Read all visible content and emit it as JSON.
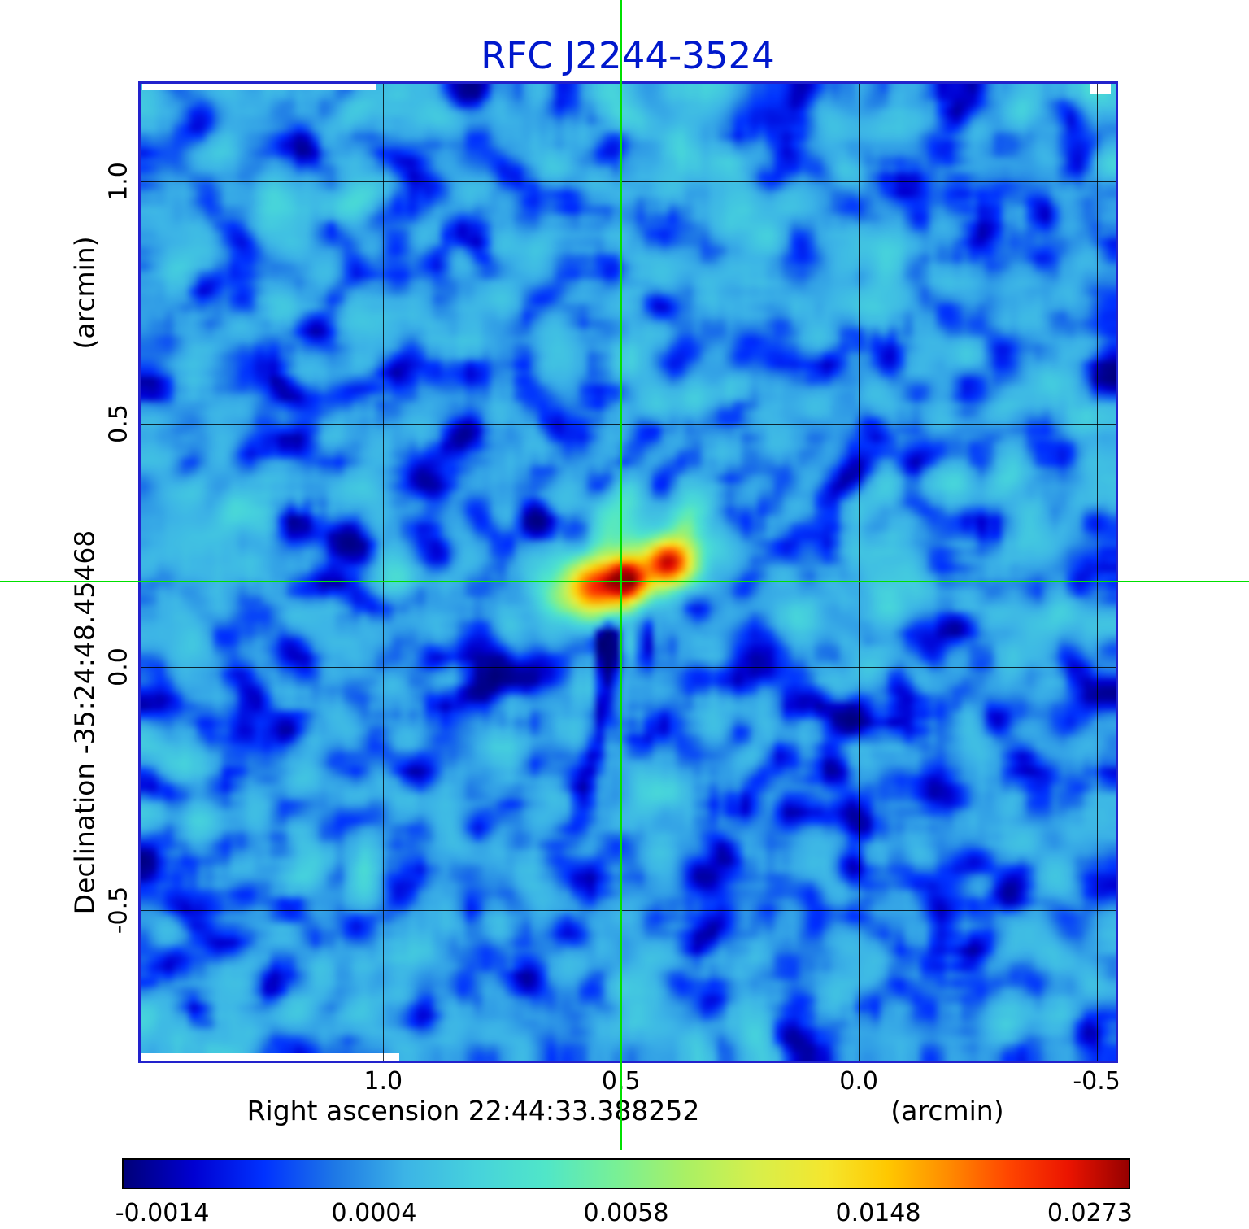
{
  "chart_data": {
    "type": "heatmap",
    "title": "RFC J2244-3524",
    "title_color": "#0018cc",
    "xlabel": "Right ascension  22:44:33.388252",
    "xunit": "(arcmin)",
    "ylabel": "Declination  -35:24:48.45468",
    "yunit": "(arcmin)",
    "x_range_arcmin": [
      1.51,
      -0.54
    ],
    "y_range_arcmin": [
      -0.81,
      1.2
    ],
    "x_ticks": [
      {
        "value": 1.0,
        "label": "1.0"
      },
      {
        "value": 0.5,
        "label": "0.5"
      },
      {
        "value": 0.0,
        "label": "0.0"
      },
      {
        "value": -0.5,
        "label": "-0.5"
      }
    ],
    "y_ticks": [
      {
        "value": 1.0,
        "label": "1.0"
      },
      {
        "value": 0.5,
        "label": "0.5"
      },
      {
        "value": 0.0,
        "label": "0.0"
      },
      {
        "value": -0.5,
        "label": "-0.5"
      }
    ],
    "grid": true,
    "crosshair": {
      "color": "#00e000",
      "ra_arcmin": 0.5,
      "dec_arcmin": 0.175
    },
    "colorbar": {
      "ticks": [
        {
          "value": -0.0014,
          "label": "-0.0014",
          "pos": 0.04
        },
        {
          "value": 0.0004,
          "label": "0.0004",
          "pos": 0.25
        },
        {
          "value": 0.0058,
          "label": "0.0058",
          "pos": 0.5
        },
        {
          "value": 0.0148,
          "label": "0.0148",
          "pos": 0.75
        },
        {
          "value": 0.0273,
          "label": "0.0273",
          "pos": 0.96
        }
      ],
      "stops": [
        [
          0.0,
          "#000078"
        ],
        [
          0.07,
          "#0000d2"
        ],
        [
          0.14,
          "#0032ff"
        ],
        [
          0.21,
          "#1e78e6"
        ],
        [
          0.28,
          "#3cb4e6"
        ],
        [
          0.35,
          "#46d2dc"
        ],
        [
          0.42,
          "#50e6c8"
        ],
        [
          0.49,
          "#78f096"
        ],
        [
          0.56,
          "#aaf064"
        ],
        [
          0.63,
          "#d7ef4b"
        ],
        [
          0.7,
          "#f5e62d"
        ],
        [
          0.76,
          "#ffc800"
        ],
        [
          0.82,
          "#ff8c00"
        ],
        [
          0.88,
          "#ff4600"
        ],
        [
          0.94,
          "#eb1400"
        ],
        [
          1.0,
          "#960000"
        ]
      ]
    },
    "value_anchors": [
      [
        -0.0026,
        0.0
      ],
      [
        -0.0014,
        0.04
      ],
      [
        0.0004,
        0.25
      ],
      [
        0.0058,
        0.5
      ],
      [
        0.0148,
        0.75
      ],
      [
        0.0273,
        0.96
      ],
      [
        0.0298,
        1.0
      ]
    ],
    "background_level": 0.0004,
    "peak_value": 0.0273,
    "noise": {
      "sigma": 0.0006,
      "sigma_coarse": 0.0005,
      "seed": 11,
      "grid": 120,
      "blur_passes": 2
    },
    "sources": [
      {
        "fx": 0.4606,
        "fy": 0.512,
        "sx": 2.3,
        "sy": 2.0,
        "rot": 0,
        "amp": 0.0185
      },
      {
        "fx": 0.4946,
        "fy": 0.503,
        "sx": 1.65,
        "sy": 1.6,
        "rot": 0,
        "amp": 0.027
      },
      {
        "fx": 0.537,
        "fy": 0.486,
        "sx": 1.8,
        "sy": 1.75,
        "rot": 0,
        "amp": 0.0235
      },
      {
        "fx": 0.497,
        "fy": 0.499,
        "sx": 5.5,
        "sy": 3.0,
        "rot": -18,
        "amp": 0.005
      },
      {
        "fx": 0.5,
        "fy": 0.5,
        "sx": 8.5,
        "sy": 6.0,
        "rot": -18,
        "amp": 0.0016
      },
      {
        "fx": 0.469,
        "fy": 0.458,
        "sx": 1.3,
        "sy": 3.0,
        "rot": 0,
        "amp": 0.0026
      },
      {
        "fx": 0.554,
        "fy": 0.445,
        "sx": 1.4,
        "sy": 3.2,
        "rot": 6,
        "amp": 0.003
      },
      {
        "fx": 0.4747,
        "fy": 0.572,
        "sx": 0.9,
        "sy": 2.3,
        "rot": 0,
        "amp": -0.0046
      },
      {
        "fx": 0.5137,
        "fy": 0.568,
        "sx": 0.8,
        "sy": 2.0,
        "rot": 0,
        "amp": -0.004
      },
      {
        "fx": 0.494,
        "fy": 0.5,
        "sx": 1.5,
        "sy": 55,
        "rot": 0,
        "amp": 0.0006
      },
      {
        "fx": 0.36,
        "fy": 0.61,
        "sx": 13,
        "sy": 1.3,
        "rot": -24,
        "amp": -0.0011
      },
      {
        "fx": 0.67,
        "fy": 0.63,
        "sx": 15,
        "sy": 1.5,
        "rot": 14,
        "amp": -0.001
      },
      {
        "fx": 0.32,
        "fy": 0.44,
        "sx": 15,
        "sy": 1.6,
        "rot": 14,
        "amp": -0.0008
      },
      {
        "fx": 0.74,
        "fy": 0.4,
        "sx": 13,
        "sy": 1.4,
        "rot": -16,
        "amp": -0.0007
      },
      {
        "fx": 0.47,
        "fy": 0.64,
        "sx": 1.0,
        "sy": 6,
        "rot": 8,
        "amp": -0.0014
      },
      {
        "fx": 0.455,
        "fy": 0.7,
        "sx": 1.0,
        "sy": 8,
        "rot": 10,
        "amp": -0.001
      }
    ]
  }
}
